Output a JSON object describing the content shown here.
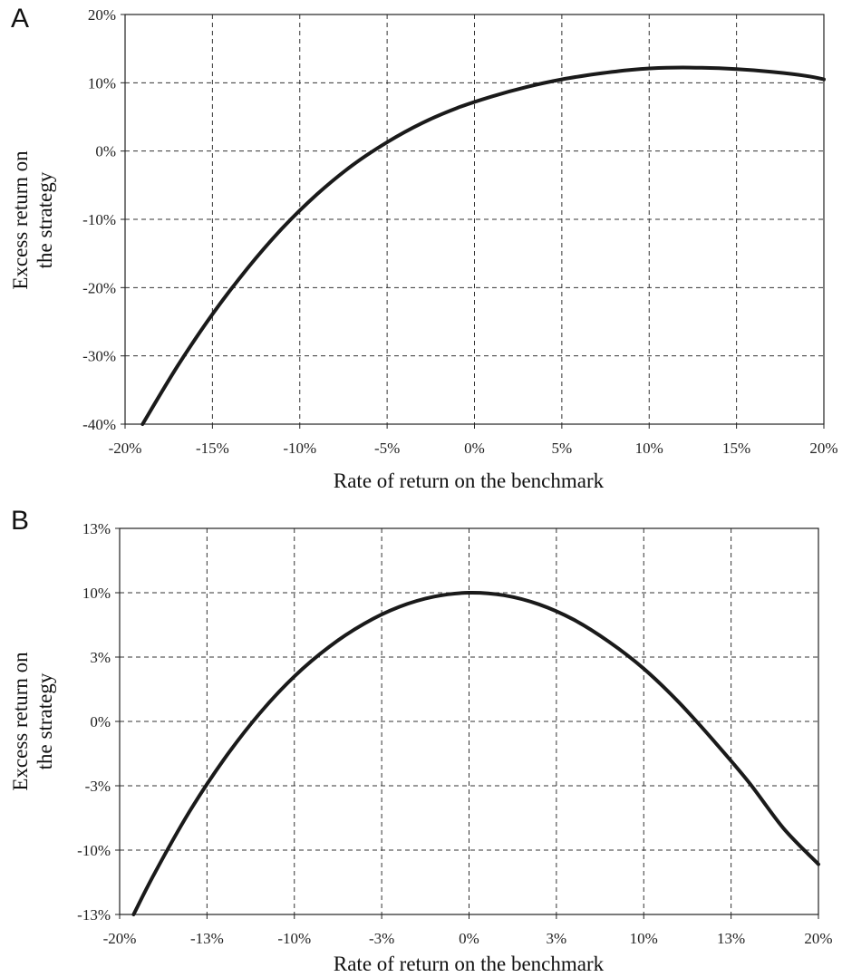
{
  "chart_data": [
    {
      "type": "line",
      "panel": "A",
      "xlabel": "Rate of return on the benchmark",
      "ylabel": [
        "Excess return on",
        "the strategy"
      ],
      "x_ticks": [
        "-20%",
        "-15%",
        "-10%",
        "-5%",
        "0%",
        "5%",
        "10%",
        "15%",
        "20%"
      ],
      "y_ticks": [
        "20%",
        "10%",
        "0%",
        "-10%",
        "-20%",
        "-30%",
        "-40%"
      ],
      "xlim": [
        -0.2,
        0.2
      ],
      "ylim": [
        -0.4,
        0.2
      ],
      "grid": true,
      "series": [
        {
          "x": [
            -0.19,
            -0.17,
            -0.15,
            -0.13,
            -0.11,
            -0.09,
            -0.07,
            -0.05,
            -0.03,
            -0.01,
            0.01,
            0.03,
            0.05,
            0.07,
            0.09,
            0.11,
            0.13,
            0.15,
            0.17,
            0.19,
            0.2
          ],
          "y": [
            -0.4,
            -0.315,
            -0.239,
            -0.172,
            -0.113,
            -0.063,
            -0.021,
            0.013,
            0.041,
            0.063,
            0.08,
            0.094,
            0.105,
            0.113,
            0.119,
            0.122,
            0.122,
            0.12,
            0.116,
            0.11,
            0.105
          ]
        }
      ]
    },
    {
      "type": "line",
      "panel": "B",
      "xlabel": "Rate of return on the benchmark",
      "ylabel": [
        "Excess return on",
        "the strategy"
      ],
      "x_ticks": [
        "-20%",
        "-13%",
        "-10%",
        "-3%",
        "0%",
        "3%",
        "10%",
        "13%",
        "20%"
      ],
      "y_ticks": [
        "13%",
        "10%",
        "3%",
        "0%",
        "-3%",
        "-10%",
        "-13%"
      ],
      "xlim": [
        -0.2,
        0.2
      ],
      "ylim": [
        -0.15,
        0.15
      ],
      "grid": true,
      "series": [
        {
          "x": [
            -0.192,
            -0.18,
            -0.16,
            -0.14,
            -0.12,
            -0.1,
            -0.08,
            -0.06,
            -0.04,
            -0.02,
            0.0,
            0.02,
            0.04,
            0.06,
            0.08,
            0.1,
            0.12,
            0.14,
            0.16,
            0.18,
            0.2
          ],
          "y": [
            -0.15,
            -0.118,
            -0.07,
            -0.029,
            0.006,
            0.035,
            0.058,
            0.076,
            0.089,
            0.097,
            0.1,
            0.098,
            0.091,
            0.079,
            0.062,
            0.041,
            0.015,
            -0.015,
            -0.047,
            -0.083,
            -0.111
          ]
        }
      ]
    }
  ]
}
